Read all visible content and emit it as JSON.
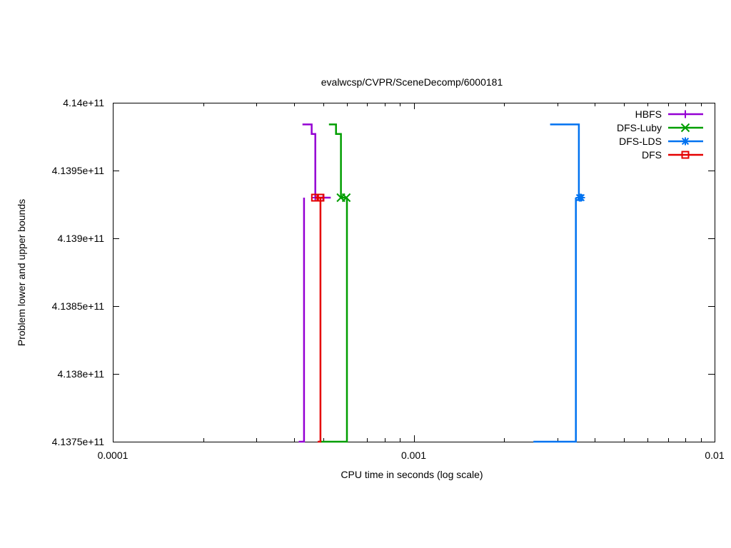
{
  "chart_data": {
    "type": "line",
    "title": "evalwcsp/CVPR/SceneDecomp/6000181",
    "xlabel": "CPU time in seconds (log scale)",
    "ylabel": "Problem lower and upper bounds",
    "x_scale": "log",
    "xlim": [
      0.0001,
      0.01
    ],
    "ylim": [
      413750000000,
      414000000000
    ],
    "x_ticks": [
      0.0001,
      0.001,
      0.01
    ],
    "x_tick_labels": [
      "0.0001",
      "0.001",
      "0.01"
    ],
    "y_ticks": [
      413750000000,
      413800000000,
      413850000000,
      413900000000,
      413950000000,
      414000000000
    ],
    "y_tick_labels": [
      "4.1375e+11",
      "4.138e+11",
      "4.1385e+11",
      "4.139e+11",
      "4.1395e+11",
      "4.14e+11"
    ],
    "grid": false,
    "legend_position": "top-right",
    "series": [
      {
        "name": "HBFS",
        "color": "#9400d3",
        "marker": "plus",
        "upper": [
          [
            0.000427,
            413984000000
          ],
          [
            0.000458,
            413984000000
          ],
          [
            0.000458,
            413977000000
          ],
          [
            0.000471,
            413977000000
          ],
          [
            0.000471,
            413930000000
          ],
          [
            0.00053,
            413930000000
          ]
        ],
        "lower": [
          [
            0.000432,
            413930000000
          ],
          [
            0.000432,
            413750000000
          ],
          [
            0.000415,
            413750000000
          ]
        ],
        "markers": [
          [
            0.000471,
            413930000000
          ],
          [
            0.0005,
            413930000000
          ]
        ]
      },
      {
        "name": "DFS-Luby",
        "color": "#009e00",
        "marker": "x",
        "upper": [
          [
            0.000523,
            413984000000
          ],
          [
            0.000552,
            413984000000
          ],
          [
            0.000552,
            413977000000
          ],
          [
            0.000573,
            413977000000
          ],
          [
            0.000573,
            413930000000
          ],
          [
            0.0006,
            413930000000
          ]
        ],
        "lower": [
          [
            0.0006,
            413930000000
          ],
          [
            0.0006,
            413750000000
          ],
          [
            0.00049,
            413750000000
          ]
        ],
        "markers": [
          [
            0.000573,
            413930000000
          ],
          [
            0.000597,
            413930000000
          ]
        ]
      },
      {
        "name": "DFS-LDS",
        "color": "#0072f0",
        "marker": "star",
        "upper": [
          [
            0.00284,
            413984000000
          ],
          [
            0.00354,
            413984000000
          ],
          [
            0.00354,
            413930000000
          ],
          [
            0.00362,
            413930000000
          ]
        ],
        "lower": [
          [
            0.00346,
            413930000000
          ],
          [
            0.00346,
            413750000000
          ],
          [
            0.0025,
            413750000000
          ]
        ],
        "markers": [
          [
            0.00356,
            413930000000
          ],
          [
            0.0036,
            413930000000
          ]
        ]
      },
      {
        "name": "DFS",
        "color": "#e50000",
        "marker": "square",
        "upper": [
          [
            0.00047,
            413930000000
          ],
          [
            0.000505,
            413930000000
          ]
        ],
        "lower": [
          [
            0.00049,
            413930000000
          ],
          [
            0.00049,
            413750000000
          ],
          [
            0.00048,
            413750000000
          ]
        ],
        "markers": [
          [
            0.00047,
            413930000000
          ],
          [
            0.00049,
            413930000000
          ]
        ]
      }
    ]
  }
}
